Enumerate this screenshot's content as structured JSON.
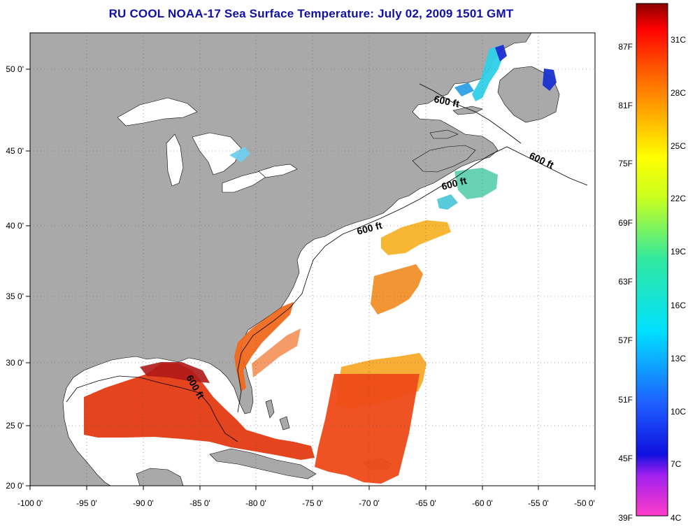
{
  "title": "RU COOL  NOAA-17  Sea Surface Temperature:  July 02, 2009 1501 GMT",
  "lon_ticks": [
    "-100 0'",
    "-95 0'",
    "-90 0'",
    "-85 0'",
    "-80 0'",
    "-75 0'",
    "-70 0'",
    "-65 0'",
    "-60 0'",
    "-55 0'",
    "-50 0'"
  ],
  "lat_ticks": [
    "20 0'",
    "25 0'",
    "30 0'",
    "35 0'",
    "40 0'",
    "45 0'",
    "50 0'"
  ],
  "depth_labels": [
    "600 ft",
    "600 ft",
    "600 ft",
    "600 ft",
    "600 ft"
  ],
  "colorbar": {
    "fahrenheit": [
      "87F",
      "81F",
      "75F",
      "69F",
      "63F",
      "57F",
      "51F",
      "45F",
      "39F"
    ],
    "celsius": [
      "31C",
      "28C",
      "25C",
      "22C",
      "19C",
      "16C",
      "13C",
      "10C",
      "7C",
      "4C"
    ]
  },
  "colors": {
    "land": "#a9a9a9",
    "ocean": "#ffffff",
    "title": "#1010a8",
    "warm_sst": "#e33b12",
    "gulf_stream": "#f06a1c",
    "mid_sst": "#f7a41e",
    "cool_sst": "#2fd0e8",
    "cold_sst": "#1a30d0"
  }
}
